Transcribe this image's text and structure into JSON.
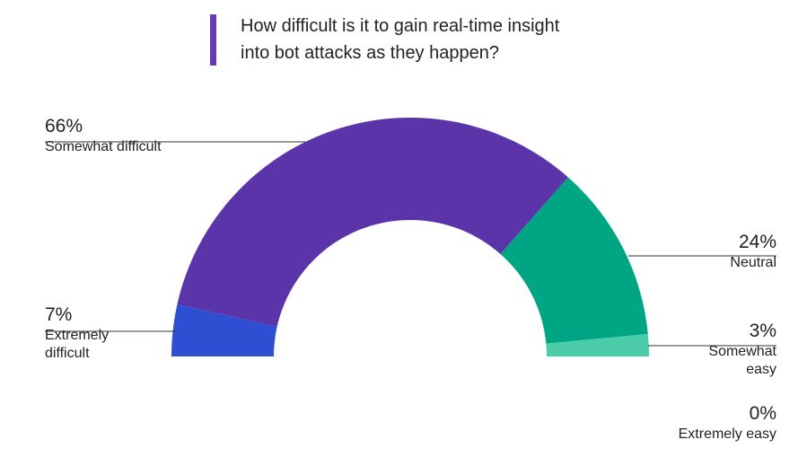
{
  "title": {
    "line1": "How difficult is it to gain real-time insight",
    "line2": "into bot attacks as they happen?"
  },
  "chart_data": {
    "type": "pie",
    "variant": "semi-donut",
    "title": "How difficult is it to gain real-time insight into bot attacks as they happen?",
    "slices": [
      {
        "label": "Extremely difficult",
        "value": 7,
        "display": "7%",
        "label_lines": [
          "Extremely",
          "difficult"
        ],
        "color": "#2e4fd1"
      },
      {
        "label": "Somewhat difficult",
        "value": 66,
        "display": "66%",
        "label_lines": [
          "Somewhat difficult"
        ],
        "color": "#5b34a9"
      },
      {
        "label": "Neutral",
        "value": 24,
        "display": "24%",
        "label_lines": [
          "Neutral"
        ],
        "color": "#00a683"
      },
      {
        "label": "Somewhat easy",
        "value": 3,
        "display": "3%",
        "label_lines": [
          "Somewhat",
          "easy"
        ],
        "color": "#4ccda9"
      },
      {
        "label": "Extremely easy",
        "value": 0,
        "display": "0%",
        "label_lines": [
          "Extremely easy"
        ],
        "color": "#7fe0c4"
      }
    ]
  }
}
